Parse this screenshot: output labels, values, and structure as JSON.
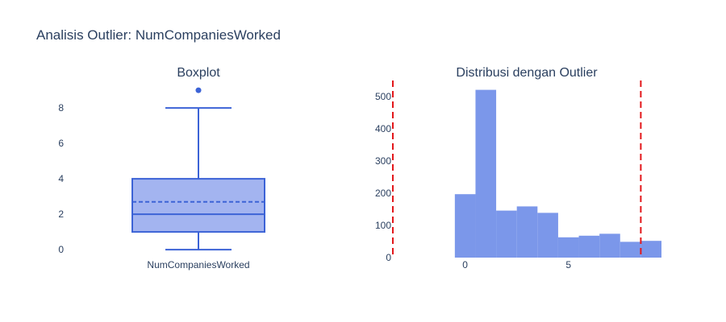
{
  "title": "Analisis Outlier: NumCompaniesWorked",
  "colors": {
    "box_fill": "#a3b4f0",
    "box_line": "#3c63d6",
    "hist_fill": "#7b97ea",
    "outlier_line": "#e3171b"
  },
  "chart_data": [
    {
      "type": "box",
      "subtitle": "Boxplot",
      "category": "NumCompaniesWorked",
      "yticks": [
        0,
        2,
        4,
        6,
        8
      ],
      "ylim": [
        -0.45,
        9.55
      ],
      "stats": {
        "min": 0,
        "q1": 1,
        "median": 2,
        "mean": 2.7,
        "q3": 4,
        "max": 8
      },
      "outliers": [
        9
      ]
    },
    {
      "type": "histogram",
      "subtitle": "Distribusi dengan Outlier",
      "bin_width": 1,
      "bins": [
        {
          "x0": -0.5,
          "x1": 0.5,
          "count": 197
        },
        {
          "x0": 0.5,
          "x1": 1.5,
          "count": 521
        },
        {
          "x0": 1.5,
          "x1": 2.5,
          "count": 146
        },
        {
          "x0": 2.5,
          "x1": 3.5,
          "count": 159
        },
        {
          "x0": 3.5,
          "x1": 4.5,
          "count": 139
        },
        {
          "x0": 4.5,
          "x1": 5.5,
          "count": 63
        },
        {
          "x0": 5.5,
          "x1": 6.5,
          "count": 68
        },
        {
          "x0": 6.5,
          "x1": 7.5,
          "count": 74
        },
        {
          "x0": 7.5,
          "x1": 8.5,
          "count": 49
        },
        {
          "x0": 8.5,
          "x1": 9.5,
          "count": 52
        }
      ],
      "xticks": [
        0,
        5
      ],
      "yticks": [
        0,
        100,
        200,
        300,
        400,
        500
      ],
      "xlim": [
        -3.5,
        9.5
      ],
      "ylim": [
        0,
        550
      ],
      "outlier_bounds": [
        -3.5,
        8.5
      ]
    }
  ]
}
